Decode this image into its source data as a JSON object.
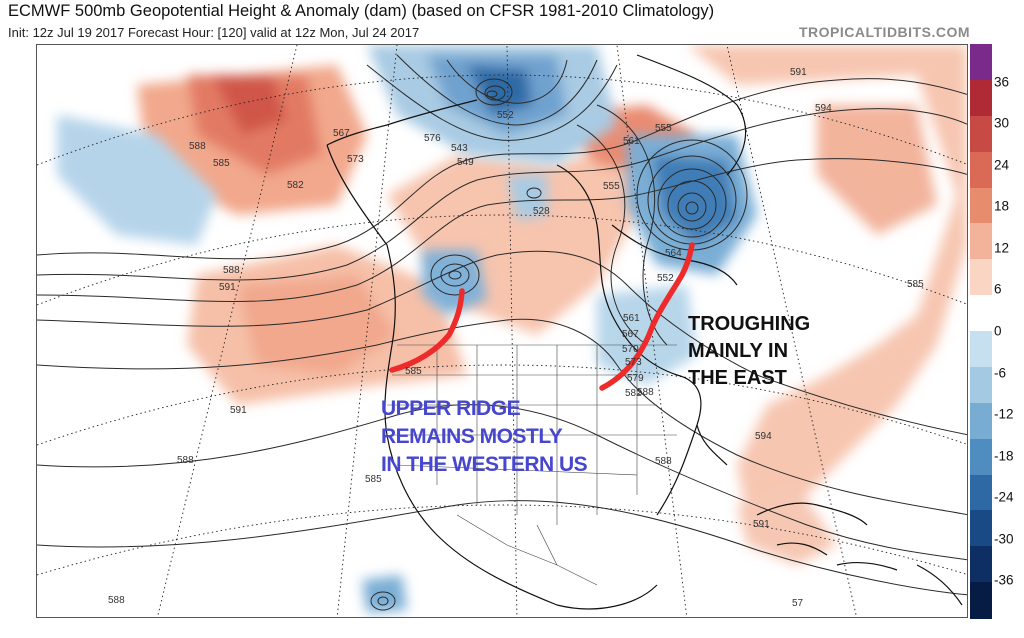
{
  "header": {
    "title": "ECMWF 500mb Geopotential Height & Anomaly (dam) (based on CFSR 1981-2010 Climatology)",
    "subtitle": "Init: 12z Jul 19 2017   Forecast Hour: [120]   valid at 12z Mon, Jul 24 2017",
    "site": "TROPICALTIDBITS.COM"
  },
  "colorbar": {
    "labels": [
      "36",
      "30",
      "24",
      "18",
      "12",
      "6",
      "0",
      "-6",
      "-12",
      "-18",
      "-24",
      "-30",
      "-36"
    ],
    "colors": [
      "#7a2a8a",
      "#b02a35",
      "#c84a45",
      "#da6a55",
      "#e88c6e",
      "#f3b39a",
      "#fad5c4",
      "#ffffff",
      "#c7e0ef",
      "#a3c9e3",
      "#79acd3",
      "#4f8cc0",
      "#2e68a5",
      "#1a4a85",
      "#0e2f63",
      "#071c45"
    ]
  },
  "contour_labels": [
    "591",
    "594",
    "588",
    "585",
    "582",
    "567",
    "573",
    "576",
    "543",
    "549",
    "552",
    "555",
    "528",
    "555",
    "561",
    "564",
    "552",
    "561",
    "567",
    "570",
    "573",
    "579",
    "582",
    "585",
    "588",
    "591",
    "585",
    "588",
    "594",
    "591",
    "588",
    "585",
    "588",
    "591",
    "588",
    "57"
  ],
  "annotations": {
    "west": [
      "UPPER RIDGE",
      "REMAINS MOSTLY",
      "IN THE WESTERN US"
    ],
    "east": [
      "TROUGHING",
      "MAINLY IN",
      "THE EAST"
    ]
  },
  "colors": {
    "ridge_line": "#ee2a2a",
    "warm": "#e0705a",
    "cold": "#4a86bd"
  }
}
